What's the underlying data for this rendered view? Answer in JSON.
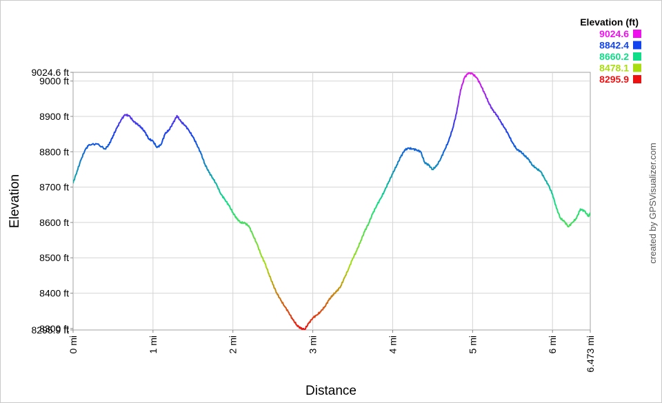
{
  "chart_data": {
    "type": "line",
    "xlabel": "Distance",
    "ylabel": "Elevation",
    "xlim": [
      0,
      6.473
    ],
    "ylim": [
      8295.9,
      9024.6
    ],
    "grid": true,
    "x_ticks": [
      {
        "value": 0,
        "label": "0 mi"
      },
      {
        "value": 1,
        "label": "1 mi"
      },
      {
        "value": 2,
        "label": "2 mi"
      },
      {
        "value": 3,
        "label": "3 mi"
      },
      {
        "value": 4,
        "label": "4 mi"
      },
      {
        "value": 5,
        "label": "5 mi"
      },
      {
        "value": 6,
        "label": "6 mi"
      },
      {
        "value": 6.473,
        "label": "6.473 mi"
      }
    ],
    "y_ticks": [
      {
        "value": 9024.6,
        "label": "9024.6 ft"
      },
      {
        "value": 9000,
        "label": "9000 ft"
      },
      {
        "value": 8900,
        "label": "8900 ft"
      },
      {
        "value": 8800,
        "label": "8800 ft"
      },
      {
        "value": 8700,
        "label": "8700 ft"
      },
      {
        "value": 8600,
        "label": "8600 ft"
      },
      {
        "value": 8500,
        "label": "8500 ft"
      },
      {
        "value": 8400,
        "label": "8400 ft"
      },
      {
        "value": 8300,
        "label": "8300 ft"
      },
      {
        "value": 8295.9,
        "label": "8295.9 ft"
      }
    ],
    "legend": {
      "title": "Elevation (ft)",
      "placement": "top-right",
      "entries": [
        {
          "label": "9024.6",
          "color": "#ee11ee"
        },
        {
          "label": "8842.4",
          "color": "#1144ee"
        },
        {
          "label": "8660.2",
          "color": "#11dd88"
        },
        {
          "label": "8478.1",
          "color": "#aadd11"
        },
        {
          "label": "8295.9",
          "color": "#ee1111"
        }
      ]
    },
    "credit": "created by GPSVisualizer.com",
    "series": [
      {
        "color_scale": [
          "#ee1111",
          "#aadd11",
          "#11dd88",
          "#1144ee",
          "#ee11ee"
        ],
        "x": [
          0,
          0.05,
          0.1,
          0.15,
          0.2,
          0.3,
          0.4,
          0.45,
          0.5,
          0.55,
          0.6,
          0.65,
          0.7,
          0.75,
          0.8,
          0.85,
          0.9,
          0.95,
          1.0,
          1.05,
          1.1,
          1.15,
          1.2,
          1.25,
          1.3,
          1.35,
          1.4,
          1.45,
          1.5,
          1.55,
          1.6,
          1.65,
          1.7,
          1.75,
          1.8,
          1.85,
          1.9,
          1.95,
          2.0,
          2.05,
          2.1,
          2.15,
          2.2,
          2.25,
          2.3,
          2.35,
          2.4,
          2.45,
          2.5,
          2.55,
          2.6,
          2.65,
          2.7,
          2.75,
          2.8,
          2.85,
          2.9,
          2.95,
          3.0,
          3.05,
          3.1,
          3.15,
          3.2,
          3.25,
          3.3,
          3.35,
          3.4,
          3.45,
          3.5,
          3.55,
          3.6,
          3.65,
          3.7,
          3.75,
          3.8,
          3.85,
          3.9,
          3.95,
          4.0,
          4.05,
          4.1,
          4.15,
          4.2,
          4.25,
          4.3,
          4.35,
          4.4,
          4.45,
          4.5,
          4.55,
          4.6,
          4.65,
          4.7,
          4.75,
          4.8,
          4.85,
          4.9,
          4.95,
          5.0,
          5.05,
          5.1,
          5.15,
          5.2,
          5.25,
          5.3,
          5.35,
          5.4,
          5.45,
          5.5,
          5.55,
          5.6,
          5.65,
          5.7,
          5.75,
          5.8,
          5.85,
          5.9,
          5.95,
          6.0,
          6.05,
          6.1,
          6.15,
          6.2,
          6.25,
          6.3,
          6.35,
          6.4,
          6.45,
          6.473
        ],
        "y": [
          8712,
          8745,
          8778,
          8805,
          8820,
          8822,
          8808,
          8820,
          8845,
          8868,
          8890,
          8905,
          8902,
          8888,
          8878,
          8870,
          8855,
          8836,
          8830,
          8812,
          8820,
          8850,
          8862,
          8880,
          8902,
          8885,
          8875,
          8860,
          8842,
          8820,
          8795,
          8765,
          8742,
          8725,
          8705,
          8680,
          8665,
          8648,
          8628,
          8610,
          8600,
          8598,
          8590,
          8565,
          8540,
          8510,
          8485,
          8455,
          8425,
          8400,
          8380,
          8362,
          8345,
          8325,
          8310,
          8300,
          8298,
          8315,
          8330,
          8338,
          8348,
          8362,
          8380,
          8395,
          8405,
          8420,
          8445,
          8470,
          8498,
          8520,
          8548,
          8575,
          8598,
          8625,
          8648,
          8668,
          8690,
          8715,
          8738,
          8762,
          8785,
          8805,
          8810,
          8808,
          8805,
          8800,
          8770,
          8762,
          8750,
          8760,
          8780,
          8805,
          8830,
          8865,
          8910,
          8975,
          9010,
          9024,
          9020,
          9010,
          8990,
          8965,
          8940,
          8918,
          8905,
          8885,
          8868,
          8848,
          8825,
          8808,
          8800,
          8790,
          8778,
          8762,
          8752,
          8745,
          8725,
          8705,
          8680,
          8640,
          8612,
          8602,
          8588,
          8600,
          8612,
          8638,
          8632,
          8618,
          8625
        ]
      }
    ]
  }
}
